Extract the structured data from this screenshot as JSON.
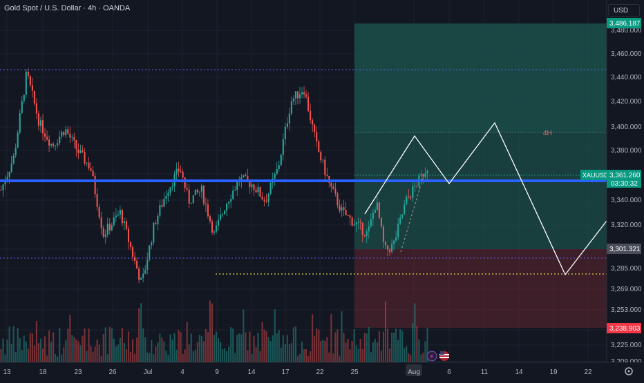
{
  "header": {
    "symbol_title": "Gold Spot / U.S. Dollar · 4h · OANDA"
  },
  "currency_button": "USD",
  "colors": {
    "background": "#131722",
    "up": "#26a69a",
    "down": "#ef5350",
    "blue_level": "#2962ff",
    "profit_zone": "#1e5f55",
    "loss_zone": "#5a2430",
    "forecast_line": "#ffffff",
    "support_dotted": "#e6d447"
  },
  "price_axis": {
    "ticks": [
      "3,480.000",
      "3,460.000",
      "3,440.000",
      "3,420.000",
      "3,400.000",
      "3,380.000",
      "3,360.000",
      "3,340.000",
      "3,320.000",
      "3,301.321",
      "3,285.000",
      "3,269.000",
      "3,253.000",
      "3,238.903",
      "3,225.000",
      "3,209.000"
    ],
    "badges": {
      "target": "3,486.187",
      "current_symbol": "XAUUSD",
      "current_price": "3,361.260",
      "countdown": "03:30:32",
      "entry": "3,301.321",
      "stop": "3,238.903"
    }
  },
  "time_axis": {
    "ticks": [
      "13",
      "18",
      "23",
      "26",
      "Jul",
      "4",
      "9",
      "14",
      "17",
      "22",
      "25",
      "Aug",
      "6",
      "11",
      "14",
      "19",
      "22"
    ]
  },
  "annotations": {
    "timeframe_label": "4H"
  },
  "icons": [
    "lightning-icon",
    "us-flag-icon",
    "gear-icon"
  ],
  "chart_data": {
    "type": "candlestick",
    "symbol": "XAUUSD",
    "timeframe": "4h",
    "ylim": [
      3209,
      3490
    ],
    "levels": {
      "resistance_dotted": 3447,
      "support_dotted": 3296,
      "support_yellow": 3280,
      "blue_level": 3355,
      "target": 3486.187,
      "entry": 3301.321,
      "stop": 3238.903,
      "tp_line": 3395
    },
    "close_path": [
      [
        0,
        3340
      ],
      [
        0.03,
        3370
      ],
      [
        0.06,
        3445
      ],
      [
        0.09,
        3400
      ],
      [
        0.12,
        3380
      ],
      [
        0.15,
        3395
      ],
      [
        0.18,
        3375
      ],
      [
        0.21,
        3360
      ],
      [
        0.24,
        3300
      ],
      [
        0.28,
        3320
      ],
      [
        0.31,
        3280
      ],
      [
        0.33,
        3255
      ],
      [
        0.36,
        3310
      ],
      [
        0.39,
        3340
      ],
      [
        0.42,
        3360
      ],
      [
        0.44,
        3330
      ],
      [
        0.47,
        3340
      ],
      [
        0.5,
        3300
      ],
      [
        0.53,
        3330
      ],
      [
        0.56,
        3350
      ],
      [
        0.59,
        3345
      ],
      [
        0.62,
        3330
      ],
      [
        0.65,
        3360
      ],
      [
        0.68,
        3420
      ],
      [
        0.71,
        3432
      ],
      [
        0.74,
        3380
      ],
      [
        0.77,
        3345
      ],
      [
        0.8,
        3320
      ],
      [
        0.83,
        3310
      ],
      [
        0.86,
        3300
      ],
      [
        0.88,
        3330
      ],
      [
        0.9,
        3285
      ],
      [
        0.92,
        3290
      ],
      [
        0.95,
        3330
      ],
      [
        1.0,
        3361
      ]
    ]
  }
}
